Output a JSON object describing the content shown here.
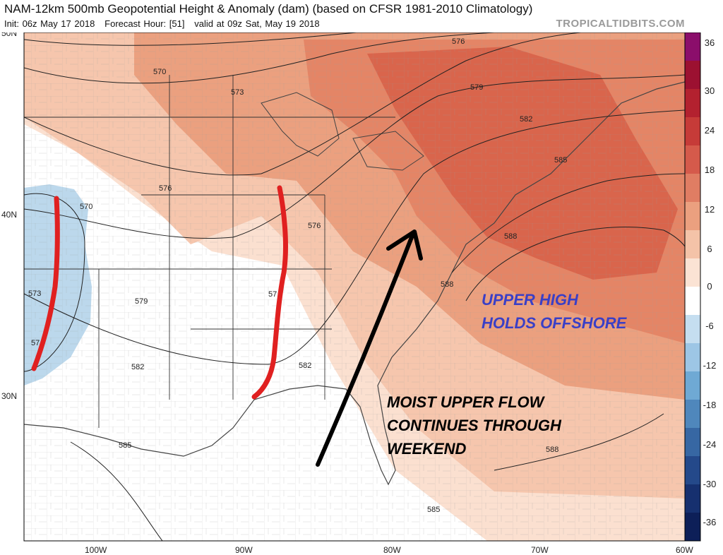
{
  "title": "NAM-12km 500mb Geopotential Height & Anomaly (dam) (based on CFSR 1981-2010 Climatology)",
  "subtitle": {
    "init": "Init: 06z May 17 2018",
    "forecast_hour": "Forecast Hour: [51]",
    "valid": "valid at 09z Sat, May 19 2018"
  },
  "credit": "TROPICALTIDBITS.COM",
  "axes": {
    "lat_labels": [
      "50N",
      "40N",
      "30N"
    ],
    "lon_labels": [
      "100W",
      "90W",
      "80W",
      "70W",
      "60W"
    ]
  },
  "contour_labels": [
    "570",
    "573",
    "576",
    "579",
    "582",
    "585",
    "588",
    "570",
    "573",
    "576",
    "582",
    "576",
    "579",
    "582",
    "585",
    "588",
    "588",
    "585",
    "57",
    "57"
  ],
  "colorbar": {
    "labels": [
      "36",
      "30",
      "24",
      "18",
      "12",
      "6",
      "0",
      "-6",
      "-12",
      "-18",
      "-24",
      "-30",
      "-36"
    ],
    "colors": [
      "#8b0e6b",
      "#9c1131",
      "#b3212f",
      "#c63b38",
      "#d55a4b",
      "#e07d63",
      "#eba07f",
      "#f4c3a8",
      "#fbe3d4",
      "#ffffff",
      "#c5def0",
      "#9dc6e5",
      "#6fa9d4",
      "#4f87bc",
      "#3767a3",
      "#24498a",
      "#16306f",
      "#0d1f58"
    ]
  },
  "annotations": {
    "upper_high": [
      "UPPER HIGH",
      "HOLDS OFFSHORE"
    ],
    "moist_flow": [
      "MOIST UPPER FLOW",
      "CONTINUES THROUGH",
      "WEEKEND"
    ]
  },
  "overlay_colors": {
    "red_lines": "#e02020",
    "arrow": "#000000",
    "upper_high_text": "#3a3fc6"
  }
}
